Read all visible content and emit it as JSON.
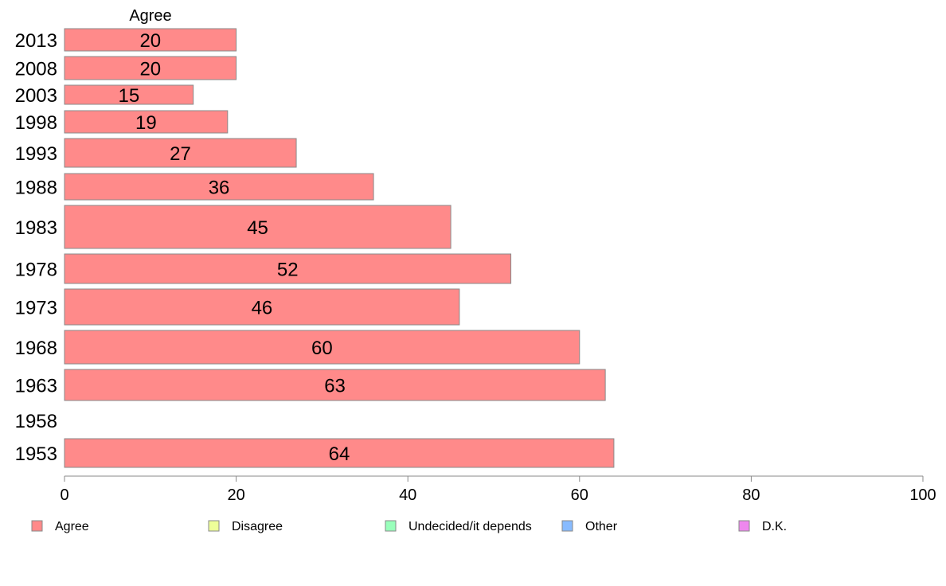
{
  "chart_data": {
    "type": "bar",
    "orientation": "horizontal",
    "column_header": "Agree",
    "categories": [
      "2013",
      "2008",
      "2003",
      "1998",
      "1993",
      "1988",
      "1983",
      "1978",
      "1973",
      "1968",
      "1963",
      "1958",
      "1953"
    ],
    "series": [
      {
        "name": "Agree",
        "color": "#ff8a8a",
        "values": [
          20,
          20,
          15,
          19,
          27,
          36,
          45,
          52,
          46,
          60,
          63,
          null,
          64
        ],
        "labels": [
          "20",
          "20",
          "15",
          "19",
          "27",
          "36",
          "45",
          "52",
          "46",
          "60",
          "63",
          "",
          "64"
        ]
      }
    ],
    "xlim": [
      0,
      100
    ],
    "xticks": [
      0,
      20,
      40,
      60,
      80,
      100
    ],
    "xtick_labels": [
      "0",
      "20",
      "40",
      "60",
      "80",
      "100"
    ],
    "grid": false,
    "legend": {
      "placement": "bottom",
      "entries": [
        {
          "label": "Agree",
          "color": "#ff8a8a"
        },
        {
          "label": "Disagree",
          "color": "#eeff99"
        },
        {
          "label": "Undecided/it depends",
          "color": "#99ffbb"
        },
        {
          "label": "Other",
          "color": "#88bbff"
        },
        {
          "label": "D.K.",
          "color": "#ee88ee"
        }
      ]
    }
  }
}
